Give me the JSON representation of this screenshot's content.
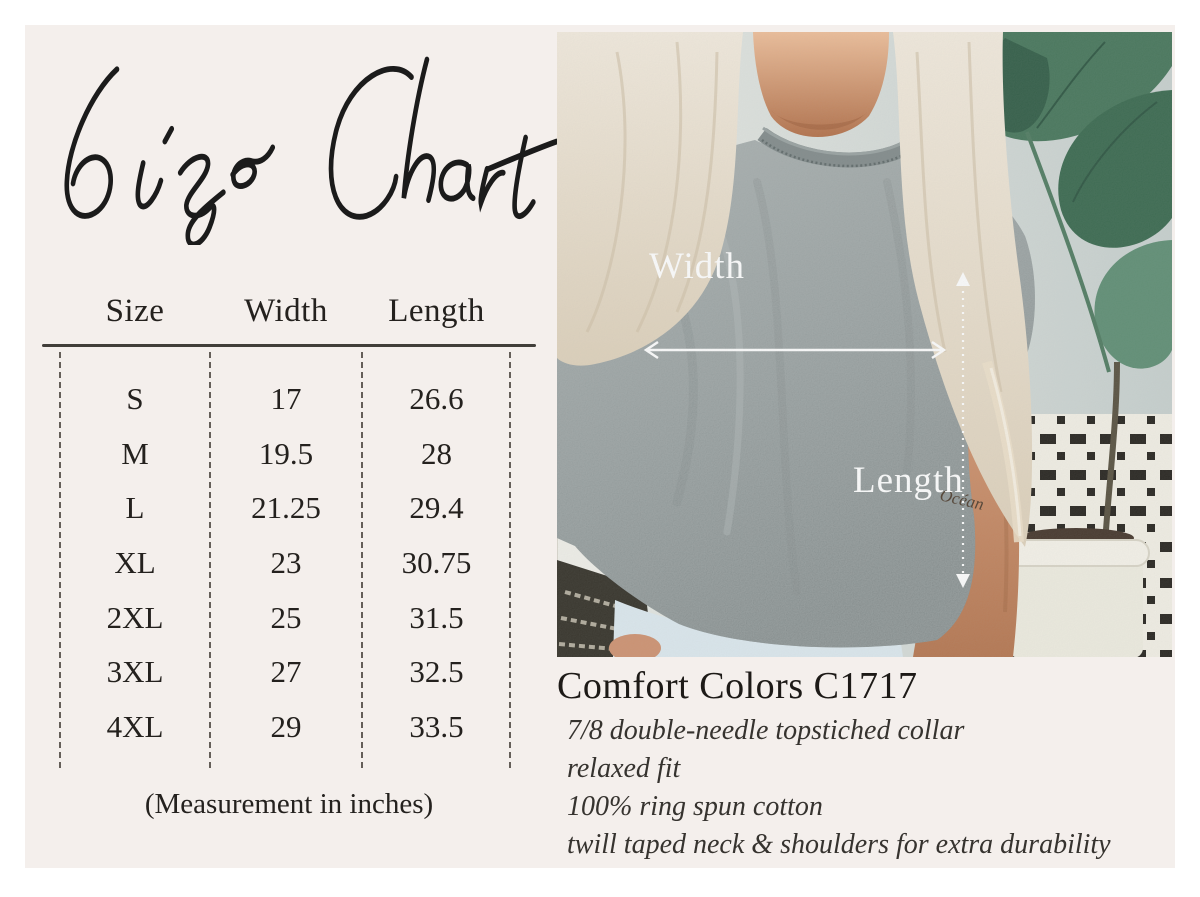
{
  "title": "Size Chart",
  "size_table": {
    "columns": [
      "Size",
      "Width",
      "Length"
    ],
    "rows": [
      [
        "S",
        "17",
        "26.6"
      ],
      [
        "M",
        "19.5",
        "28"
      ],
      [
        "L",
        "21.25",
        "29.4"
      ],
      [
        "XL",
        "23",
        "30.75"
      ],
      [
        "2XL",
        "25",
        "31.5"
      ],
      [
        "3XL",
        "27",
        "32.5"
      ],
      [
        "4XL",
        "29",
        "33.5"
      ]
    ],
    "note": "(Measurement in inches)"
  },
  "photo": {
    "width_label": "Width",
    "length_label": "Length",
    "tattoo_text": "Océan"
  },
  "product": {
    "name": "Comfort Colors C1717",
    "features": [
      "7/8 double-needle topstiched collar",
      "relaxed fit",
      "100% ring spun cotton",
      "twill taped neck & shoulders for extra durability"
    ]
  },
  "colors": {
    "panel_background": "#f4efec",
    "ink": "#24211e",
    "tee_gray": "#8d9696",
    "leaf_green": "#46755a",
    "arrow_white": "#fcfcfc"
  }
}
